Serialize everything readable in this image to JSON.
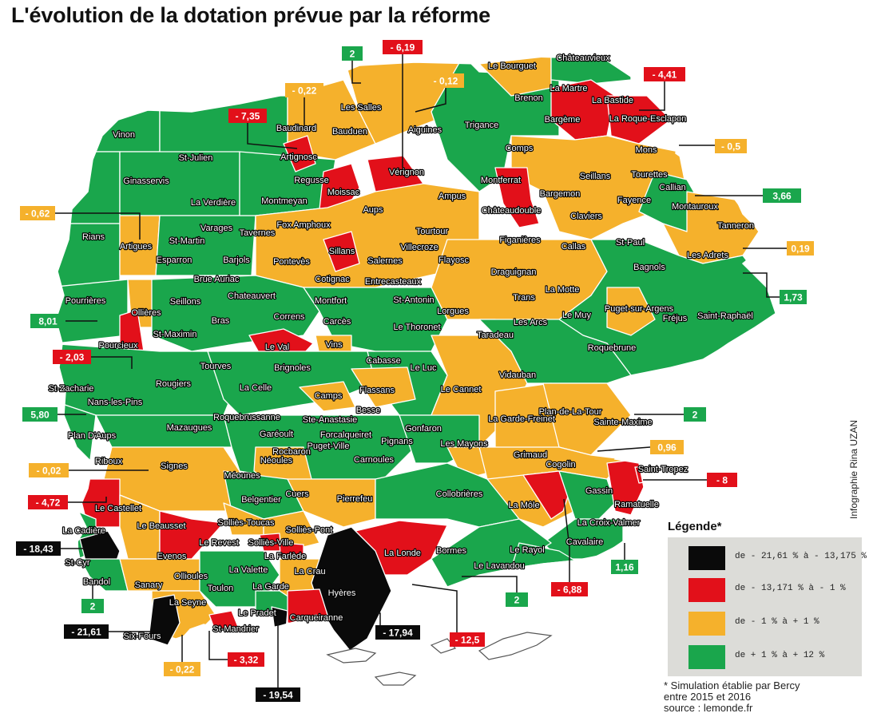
{
  "title": "L'évolution de la dotation prévue par la réforme",
  "colors": {
    "black": "#0a0a0a",
    "red": "#e2101a",
    "orange": "#f5b12c",
    "green": "#1aa64c",
    "border": "#ffffff",
    "legend_bg": "#dcdcd8"
  },
  "legend": {
    "title": "Légende*",
    "items": [
      {
        "label": "de - 21,61 % à - 13,175 %",
        "color": "#0a0a0a"
      },
      {
        "label": "de - 13,171 % à - 1 %",
        "color": "#e2101a"
      },
      {
        "label": "de - 1 % à + 1 %",
        "color": "#f5b12c"
      },
      {
        "label": "de + 1 % à + 12 %",
        "color": "#1aa64c"
      }
    ]
  },
  "credit": "Infographie Rina UZAN",
  "footnote": {
    "line1": "* Simulation établie par Bercy",
    "line2": "entre 2015 et 2016",
    "line3": "source : lemonde.fr"
  },
  "communes": [
    {
      "name": "Vinon",
      "cls": "green"
    },
    {
      "name": "St-Julien",
      "cls": "green"
    },
    {
      "name": "Ginasservis",
      "cls": "green"
    },
    {
      "name": "La Verdière",
      "cls": "green"
    },
    {
      "name": "Rians",
      "cls": "green"
    },
    {
      "name": "Artigues",
      "cls": "orange"
    },
    {
      "name": "St-Martin",
      "cls": "green"
    },
    {
      "name": "Esparron",
      "cls": "green"
    },
    {
      "name": "Varages",
      "cls": "orange"
    },
    {
      "name": "Barjols",
      "cls": "green"
    },
    {
      "name": "Tavernes",
      "cls": "green"
    },
    {
      "name": "Montmeyan",
      "cls": "green"
    },
    {
      "name": "Regusse",
      "cls": "green"
    },
    {
      "name": "Artignosc",
      "cls": "red"
    },
    {
      "name": "Baudinard",
      "cls": "orange"
    },
    {
      "name": "Bauduen",
      "cls": "orange"
    },
    {
      "name": "Les Salles",
      "cls": "orange"
    },
    {
      "name": "Aiguines",
      "cls": "orange"
    },
    {
      "name": "Vérignon",
      "cls": "red"
    },
    {
      "name": "Moissac",
      "cls": "red"
    },
    {
      "name": "Aups",
      "cls": "orange"
    },
    {
      "name": "Fox Amphoux",
      "cls": "orange"
    },
    {
      "name": "Sillans",
      "cls": "red"
    },
    {
      "name": "Pontevès",
      "cls": "orange"
    },
    {
      "name": "Brue Auriac",
      "cls": "green"
    },
    {
      "name": "Seillons",
      "cls": "green"
    },
    {
      "name": "Pourrières",
      "cls": "green"
    },
    {
      "name": "Ollières",
      "cls": "orange"
    },
    {
      "name": "Pourcieux",
      "cls": "red"
    },
    {
      "name": "St-Maximin",
      "cls": "green"
    },
    {
      "name": "Bras",
      "cls": "green"
    },
    {
      "name": "Chateauvert",
      "cls": "green"
    },
    {
      "name": "Cotignac",
      "cls": "orange"
    },
    {
      "name": "Salernes",
      "cls": "orange"
    },
    {
      "name": "Villecroze",
      "cls": "orange"
    },
    {
      "name": "Tourtour",
      "cls": "orange"
    },
    {
      "name": "Ampus",
      "cls": "orange"
    },
    {
      "name": "Trigance",
      "cls": "green"
    },
    {
      "name": "Le Bourguet",
      "cls": "orange"
    },
    {
      "name": "Châteauvieux",
      "cls": "green"
    },
    {
      "name": "La Martre",
      "cls": "red"
    },
    {
      "name": "Brenon",
      "cls": "red"
    },
    {
      "name": "La Bastide",
      "cls": "orange"
    },
    {
      "name": "Bargème",
      "cls": "red"
    },
    {
      "name": "La Roque-Esclapon",
      "cls": "red"
    },
    {
      "name": "Comps",
      "cls": "green"
    },
    {
      "name": "Mons",
      "cls": "orange"
    },
    {
      "name": "Montferrat",
      "cls": "red"
    },
    {
      "name": "Châteaudouble",
      "cls": "red"
    },
    {
      "name": "Bargemon",
      "cls": "orange"
    },
    {
      "name": "Seillans",
      "cls": "orange"
    },
    {
      "name": "Claviers",
      "cls": "orange"
    },
    {
      "name": "Tourettes",
      "cls": "orange"
    },
    {
      "name": "Fayence",
      "cls": "green"
    },
    {
      "name": "Callian",
      "cls": "orange"
    },
    {
      "name": "Montauroux",
      "cls": "green"
    },
    {
      "name": "Tanneron",
      "cls": "orange"
    },
    {
      "name": "Flayosc",
      "cls": "orange"
    },
    {
      "name": "Figanières",
      "cls": "orange"
    },
    {
      "name": "Callas",
      "cls": "orange"
    },
    {
      "name": "St-Paul",
      "cls": "green"
    },
    {
      "name": "Bagnols",
      "cls": "orange"
    },
    {
      "name": "Les Adrets",
      "cls": "orange"
    },
    {
      "name": "Draguignan",
      "cls": "orange"
    },
    {
      "name": "Entrecasteaux",
      "cls": "orange"
    },
    {
      "name": "Montfort",
      "cls": "green"
    },
    {
      "name": "St-Antonin",
      "cls": "orange"
    },
    {
      "name": "Lorgues",
      "cls": "orange"
    },
    {
      "name": "Trans",
      "cls": "orange"
    },
    {
      "name": "La Motte",
      "cls": "orange"
    },
    {
      "name": "Le Muy",
      "cls": "green"
    },
    {
      "name": "Puget-sur-Argens",
      "cls": "orange"
    },
    {
      "name": "Fréjus",
      "cls": "green"
    },
    {
      "name": "Saint-Raphaël",
      "cls": "green"
    },
    {
      "name": "Correns",
      "cls": "green"
    },
    {
      "name": "Carcès",
      "cls": "green"
    },
    {
      "name": "Le Thoronet",
      "cls": "green"
    },
    {
      "name": "Les Arcs",
      "cls": "green"
    },
    {
      "name": "Taradeau",
      "cls": "orange"
    },
    {
      "name": "Roquebrune",
      "cls": "green"
    },
    {
      "name": "Le Val",
      "cls": "red"
    },
    {
      "name": "Vins",
      "cls": "orange"
    },
    {
      "name": "Tourves",
      "cls": "green"
    },
    {
      "name": "Brignoles",
      "cls": "green"
    },
    {
      "name": "Cabasse",
      "cls": "green"
    },
    {
      "name": "Le Luc",
      "cls": "green"
    },
    {
      "name": "Vidauban",
      "cls": "green"
    },
    {
      "name": "Rougiers",
      "cls": "green"
    },
    {
      "name": "La Celle",
      "cls": "green"
    },
    {
      "name": "Camps",
      "cls": "orange"
    },
    {
      "name": "Flassans",
      "cls": "orange"
    },
    {
      "name": "Le Cannet",
      "cls": "orange"
    },
    {
      "name": "St-Zacharie",
      "cls": "green"
    },
    {
      "name": "Nans-les-Pins",
      "cls": "green"
    },
    {
      "name": "Besse",
      "cls": "orange"
    },
    {
      "name": "La Garde-Freinet",
      "cls": "orange"
    },
    {
      "name": "Plan-de-La-Tour",
      "cls": "orange"
    },
    {
      "name": "Sainte-Maxime",
      "cls": "green"
    },
    {
      "name": "Plan D'Aups",
      "cls": "green"
    },
    {
      "name": "Mazaugues",
      "cls": "green"
    },
    {
      "name": "Roquebrussanne",
      "cls": "green"
    },
    {
      "name": "Ste-Anastasie",
      "cls": "green"
    },
    {
      "name": "Garéoult",
      "cls": "green"
    },
    {
      "name": "Forcalqueiret",
      "cls": "green"
    },
    {
      "name": "Gonfaron",
      "cls": "green"
    },
    {
      "name": "Pignans",
      "cls": "green"
    },
    {
      "name": "Les Mayons",
      "cls": "orange"
    },
    {
      "name": "Grimaud",
      "cls": "orange"
    },
    {
      "name": "Riboux",
      "cls": "green"
    },
    {
      "name": "Signes",
      "cls": "orange"
    },
    {
      "name": "Rocbaron",
      "cls": "green"
    },
    {
      "name": "Néoules",
      "cls": "orange"
    },
    {
      "name": "Puget-Ville",
      "cls": "green"
    },
    {
      "name": "Carnoules",
      "cls": "green"
    },
    {
      "name": "Méounes",
      "cls": "green"
    },
    {
      "name": "Cogolin",
      "cls": "red"
    },
    {
      "name": "Gassin",
      "cls": "green"
    },
    {
      "name": "Saint-Tropez",
      "cls": "red"
    },
    {
      "name": "Ramatuelle",
      "cls": "red"
    },
    {
      "name": "Cuers",
      "cls": "green"
    },
    {
      "name": "Belgentier",
      "cls": "orange"
    },
    {
      "name": "Pierrefeu",
      "cls": "orange"
    },
    {
      "name": "Collobrières",
      "cls": "green"
    },
    {
      "name": "La Môle",
      "cls": "orange"
    },
    {
      "name": "La Croix-Valmer",
      "cls": "green"
    },
    {
      "name": "Le Castellet",
      "cls": "red"
    },
    {
      "name": "Solliès-Toucas",
      "cls": "orange"
    },
    {
      "name": "Solliès-Pont",
      "cls": "orange"
    },
    {
      "name": "Le Beausset",
      "cls": "orange"
    },
    {
      "name": "Le Revest",
      "cls": "red"
    },
    {
      "name": "Solliès-Ville",
      "cls": "red"
    },
    {
      "name": "La Cadière",
      "cls": "green"
    },
    {
      "name": "Evenos",
      "cls": "red"
    },
    {
      "name": "La Farlède",
      "cls": "red"
    },
    {
      "name": "La Londe",
      "cls": "red"
    },
    {
      "name": "Bormes",
      "cls": "green"
    },
    {
      "name": "Le Rayol",
      "cls": "green"
    },
    {
      "name": "Cavalaire",
      "cls": "green"
    },
    {
      "name": "St-Cyr",
      "cls": "black"
    },
    {
      "name": "Ollioules",
      "cls": "orange"
    },
    {
      "name": "La Valette",
      "cls": "green"
    },
    {
      "name": "La Crau",
      "cls": "orange"
    },
    {
      "name": "Le Lavandou",
      "cls": "green"
    },
    {
      "name": "Bandol",
      "cls": "green"
    },
    {
      "name": "Sanary",
      "cls": "green"
    },
    {
      "name": "Toulon",
      "cls": "green"
    },
    {
      "name": "La Garde",
      "cls": "green"
    },
    {
      "name": "Hyères",
      "cls": "black"
    },
    {
      "name": "La Seyne",
      "cls": "orange"
    },
    {
      "name": "Le Pradet",
      "cls": "black"
    },
    {
      "name": "Carqueiranne",
      "cls": "red"
    },
    {
      "name": "Six-Fours",
      "cls": "black"
    },
    {
      "name": "St-Mandrier",
      "cls": "red"
    }
  ],
  "values": [
    {
      "value": "2",
      "cls": "green"
    },
    {
      "value": "- 6,19",
      "cls": "red"
    },
    {
      "value": "- 0,12",
      "cls": "orange"
    },
    {
      "value": "- 0,22",
      "cls": "orange"
    },
    {
      "value": "- 7,35",
      "cls": "red"
    },
    {
      "value": "- 4,41",
      "cls": "red"
    },
    {
      "value": "- 0,5",
      "cls": "orange"
    },
    {
      "value": "3,66",
      "cls": "green"
    },
    {
      "value": "- 0,62",
      "cls": "orange"
    },
    {
      "value": "0,19",
      "cls": "orange"
    },
    {
      "value": "1,73",
      "cls": "green"
    },
    {
      "value": "8,01",
      "cls": "green"
    },
    {
      "value": "- 2,03",
      "cls": "red"
    },
    {
      "value": "5,80",
      "cls": "green"
    },
    {
      "value": "2",
      "cls": "green"
    },
    {
      "value": "0,96",
      "cls": "orange"
    },
    {
      "value": "- 0,02",
      "cls": "orange"
    },
    {
      "value": "- 8",
      "cls": "red"
    },
    {
      "value": "- 4,72",
      "cls": "red"
    },
    {
      "value": "- 18,43",
      "cls": "black"
    },
    {
      "value": "1,16",
      "cls": "green"
    },
    {
      "value": "2",
      "cls": "green"
    },
    {
      "value": "2",
      "cls": "green"
    },
    {
      "value": "- 6,88",
      "cls": "red"
    },
    {
      "value": "- 21,61",
      "cls": "black"
    },
    {
      "value": "- 17,94",
      "cls": "black"
    },
    {
      "value": "- 12,5",
      "cls": "red"
    },
    {
      "value": "- 0,22",
      "cls": "orange"
    },
    {
      "value": "- 3,32",
      "cls": "red"
    },
    {
      "value": "- 19,54",
      "cls": "black"
    }
  ]
}
